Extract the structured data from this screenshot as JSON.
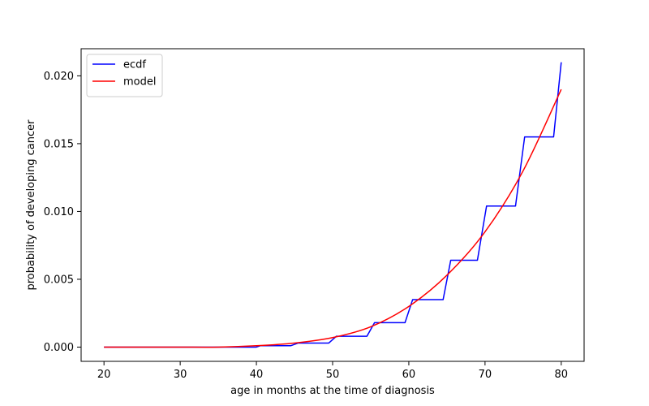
{
  "chart_data": {
    "type": "line",
    "title": "",
    "xlabel": "age in months at the time of diagnosis",
    "ylabel": "probability of developing cancer",
    "xlim": [
      17,
      83
    ],
    "ylim": [
      -0.00105,
      0.022
    ],
    "x_ticks": [
      20,
      30,
      40,
      50,
      60,
      70,
      80
    ],
    "x_tick_labels": [
      "20",
      "30",
      "40",
      "50",
      "60",
      "70",
      "80"
    ],
    "y_ticks": [
      0.0,
      0.005,
      0.01,
      0.015,
      0.02
    ],
    "y_tick_labels": [
      "0.000",
      "0.005",
      "0.010",
      "0.015",
      "0.020"
    ],
    "grid": false,
    "legend_position": "top-left",
    "series": [
      {
        "name": "ecdf",
        "color": "#0000ff",
        "style": "step",
        "x": [
          20,
          25,
          25.5,
          30,
          30.5,
          35,
          35.5,
          40,
          40.5,
          44.5,
          45.5,
          49.5,
          50.5,
          54.5,
          55.5,
          59.5,
          60.5,
          64.5,
          65.5,
          69,
          70.2,
          74,
          75.2,
          79,
          80
        ],
        "y": [
          0.0,
          0.0,
          0.0,
          0.0,
          0.0,
          0.0,
          0.0,
          0.0,
          0.0001,
          0.0001,
          0.0003,
          0.0003,
          0.0008,
          0.0008,
          0.0018,
          0.0018,
          0.0035,
          0.0035,
          0.0064,
          0.0064,
          0.0104,
          0.0104,
          0.0155,
          0.0155,
          0.021
        ]
      },
      {
        "name": "model",
        "color": "#ff0000",
        "style": "smooth",
        "x": [
          20,
          25,
          30,
          35,
          40,
          45,
          50,
          55,
          60,
          65,
          70,
          75,
          80
        ],
        "y": [
          0.0,
          0.0,
          0.0,
          0.0,
          0.0001,
          0.0003,
          0.0007,
          0.0015,
          0.003,
          0.0053,
          0.0085,
          0.013,
          0.019
        ]
      }
    ]
  }
}
